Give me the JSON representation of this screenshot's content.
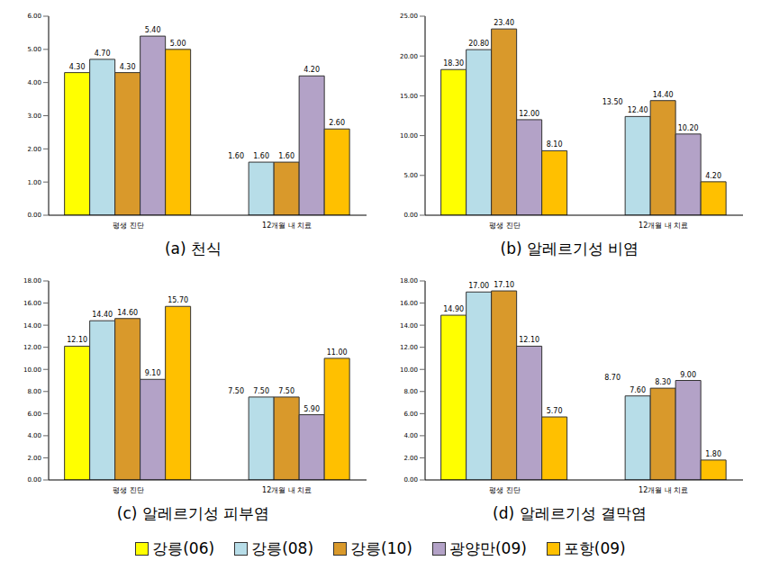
{
  "chart_data": [
    {
      "type": "bar",
      "title": "(a) 천식",
      "categories": [
        "평생 진단",
        "12개월 내 치료"
      ],
      "ylim": [
        0,
        6
      ],
      "yticks": [
        {
          "value": 0,
          "label": "0.00"
        },
        {
          "value": 1,
          "label": "1.00"
        },
        {
          "value": 2,
          "label": "2.00"
        },
        {
          "value": 3,
          "label": "3.00"
        },
        {
          "value": 4,
          "label": "4.00"
        },
        {
          "value": 5,
          "label": "5.00"
        },
        {
          "value": 6,
          "label": "6.00"
        }
      ],
      "data_labels": true,
      "series": [
        {
          "name": "강릉(06)",
          "color": "#ffff00",
          "values": [
            4.3,
            null
          ],
          "value_labels": [
            "4.30",
            null
          ]
        },
        {
          "name": "강릉(08)",
          "color": "#b7dde8",
          "values": [
            4.7,
            1.6
          ],
          "value_labels": [
            "4.70",
            "1.60"
          ]
        },
        {
          "name": "강릉(10)",
          "color": "#d9992b",
          "values": [
            4.3,
            1.6
          ],
          "value_labels": [
            "4.30",
            "1.60"
          ]
        },
        {
          "name": "광양만(09)",
          "color": "#b3a2c7",
          "values": [
            5.4,
            4.2
          ],
          "value_labels": [
            "5.40",
            "4.20"
          ]
        },
        {
          "name": "포항(09)",
          "color": "#ffc000",
          "values": [
            5.0,
            2.6
          ],
          "value_labels": [
            "5.00",
            "2.60"
          ]
        }
      ],
      "annotations": [
        {
          "text": "1.60",
          "series": "강릉(06)",
          "category": "12개월 내 치료",
          "value": 1.6
        }
      ]
    },
    {
      "type": "bar",
      "title": "(b) 알레르기성 비염",
      "categories": [
        "평생 진단",
        "12개월 내 치료"
      ],
      "ylim": [
        0,
        25
      ],
      "yticks": [
        {
          "value": 0,
          "label": "0.00"
        },
        {
          "value": 5,
          "label": "5.00"
        },
        {
          "value": 10,
          "label": "10.00"
        },
        {
          "value": 15,
          "label": "15.00"
        },
        {
          "value": 20,
          "label": "20.00"
        },
        {
          "value": 25,
          "label": "25.00"
        }
      ],
      "data_labels": true,
      "series": [
        {
          "name": "강릉(06)",
          "color": "#ffff00",
          "values": [
            18.3,
            null
          ],
          "value_labels": [
            "18.30",
            null
          ]
        },
        {
          "name": "강릉(08)",
          "color": "#b7dde8",
          "values": [
            20.8,
            12.4
          ],
          "value_labels": [
            "20.80",
            "12.40"
          ]
        },
        {
          "name": "강릉(10)",
          "color": "#d9992b",
          "values": [
            23.4,
            14.4
          ],
          "value_labels": [
            "23.40",
            "14.40"
          ]
        },
        {
          "name": "광양만(09)",
          "color": "#b3a2c7",
          "values": [
            12.0,
            10.2
          ],
          "value_labels": [
            "12.00",
            "10.20"
          ]
        },
        {
          "name": "포항(09)",
          "color": "#ffc000",
          "values": [
            8.1,
            4.2
          ],
          "value_labels": [
            "8.10",
            "4.20"
          ]
        }
      ],
      "annotations": [
        {
          "text": "13.50",
          "series": "강릉(06)",
          "category": "12개월 내 치료",
          "value": 13.5
        }
      ]
    },
    {
      "type": "bar",
      "title": "(c) 알레르기성 피부염",
      "categories": [
        "평생 진단",
        "12개월 내 치료"
      ],
      "ylim": [
        0,
        18
      ],
      "yticks": [
        {
          "value": 0,
          "label": "0.00"
        },
        {
          "value": 2,
          "label": "2.00"
        },
        {
          "value": 4,
          "label": "4.00"
        },
        {
          "value": 6,
          "label": "6.00"
        },
        {
          "value": 8,
          "label": "8.00"
        },
        {
          "value": 10,
          "label": "10.00"
        },
        {
          "value": 12,
          "label": "12.00"
        },
        {
          "value": 14,
          "label": "14.00"
        },
        {
          "value": 16,
          "label": "16.00"
        },
        {
          "value": 18,
          "label": "18.00"
        }
      ],
      "data_labels": true,
      "series": [
        {
          "name": "강릉(06)",
          "color": "#ffff00",
          "values": [
            12.1,
            null
          ],
          "value_labels": [
            "12.10",
            null
          ]
        },
        {
          "name": "강릉(08)",
          "color": "#b7dde8",
          "values": [
            14.4,
            7.5
          ],
          "value_labels": [
            "14.40",
            "7.50"
          ]
        },
        {
          "name": "강릉(10)",
          "color": "#d9992b",
          "values": [
            14.6,
            7.5
          ],
          "value_labels": [
            "14.60",
            "7.50"
          ]
        },
        {
          "name": "광양만(09)",
          "color": "#b3a2c7",
          "values": [
            9.1,
            5.9
          ],
          "value_labels": [
            "9.10",
            "5.90"
          ]
        },
        {
          "name": "포항(09)",
          "color": "#ffc000",
          "values": [
            15.7,
            11.0
          ],
          "value_labels": [
            "15.70",
            "11.00"
          ]
        }
      ],
      "annotations": [
        {
          "text": "7.50",
          "series": "강릉(06)",
          "category": "12개월 내 치료",
          "value": 7.5
        }
      ]
    },
    {
      "type": "bar",
      "title": "(d) 알레르기성 결막염",
      "categories": [
        "평생 진단",
        "12개월 내 치료"
      ],
      "ylim": [
        0,
        18
      ],
      "yticks": [
        {
          "value": 0,
          "label": "0.00"
        },
        {
          "value": 2,
          "label": "2.00"
        },
        {
          "value": 4,
          "label": "4.00"
        },
        {
          "value": 6,
          "label": "6.00"
        },
        {
          "value": 8,
          "label": "8.00"
        },
        {
          "value": 10,
          "label": "10.00"
        },
        {
          "value": 12,
          "label": "12.00"
        },
        {
          "value": 14,
          "label": "14.00"
        },
        {
          "value": 16,
          "label": "16.00"
        },
        {
          "value": 18,
          "label": "18.00"
        }
      ],
      "data_labels": true,
      "series": [
        {
          "name": "강릉(06)",
          "color": "#ffff00",
          "values": [
            14.9,
            null
          ],
          "value_labels": [
            "14.90",
            null
          ]
        },
        {
          "name": "강릉(08)",
          "color": "#b7dde8",
          "values": [
            17.0,
            7.6
          ],
          "value_labels": [
            "17.00",
            "7.60"
          ]
        },
        {
          "name": "강릉(10)",
          "color": "#d9992b",
          "values": [
            17.1,
            8.3
          ],
          "value_labels": [
            "17.10",
            "8.30"
          ]
        },
        {
          "name": "광양만(09)",
          "color": "#b3a2c7",
          "values": [
            12.1,
            9.0
          ],
          "value_labels": [
            "12.10",
            "9.00"
          ]
        },
        {
          "name": "포항(09)",
          "color": "#ffc000",
          "values": [
            5.7,
            1.8
          ],
          "value_labels": [
            "5.70",
            "1.80"
          ]
        }
      ],
      "annotations": [
        {
          "text": "8.70",
          "series": "강릉(06)",
          "category": "12개월 내 치료",
          "value": 8.7
        }
      ]
    }
  ]
}
